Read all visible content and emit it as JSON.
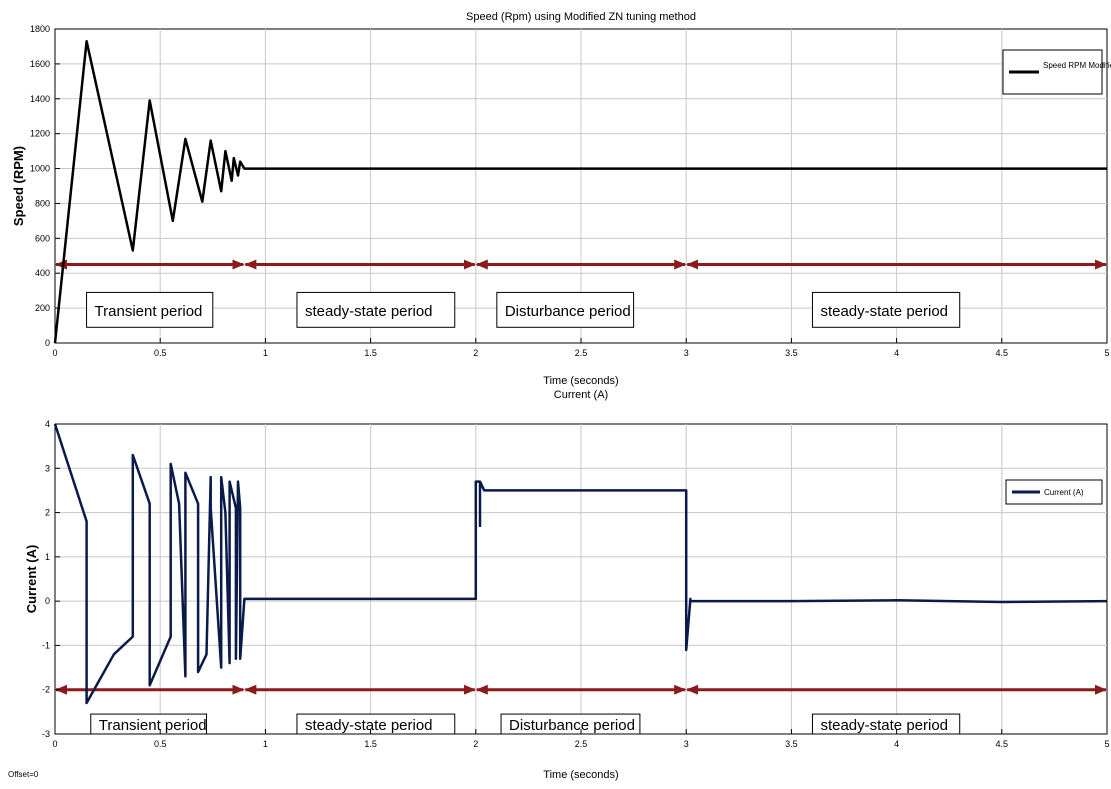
{
  "footer_note": "Offset=0",
  "chart_data": [
    {
      "type": "line",
      "title": "Speed (Rpm) using Modified ZN tuning method",
      "xlabel": "Time (seconds)",
      "ylabel": "Speed (RPM)",
      "xlim": [
        0,
        5
      ],
      "ylim": [
        0,
        1800
      ],
      "xticks": [
        0,
        0.5,
        1,
        1.5,
        2,
        2.5,
        3,
        3.5,
        4,
        4.5,
        5
      ],
      "yticks": [
        0,
        200,
        400,
        600,
        800,
        1000,
        1200,
        1400,
        1600,
        1800
      ],
      "xticklabels": [
        "0",
        "0.5",
        "1",
        "1.5",
        "2",
        "2.5",
        "3",
        "3.5",
        "4",
        "4.5",
        "5"
      ],
      "yticklabels": [
        "0",
        "200",
        "400",
        "600",
        "800",
        "1000",
        "1200",
        "1400",
        "1600",
        "1800"
      ],
      "grid": true,
      "legend_position": "top-right",
      "series": [
        {
          "name": "Speed RPM Modified ZN",
          "color": "#000000",
          "x": [
            0,
            0.15,
            0.37,
            0.45,
            0.56,
            0.62,
            0.7,
            0.74,
            0.79,
            0.81,
            0.84,
            0.85,
            0.87,
            0.88,
            0.9,
            5
          ],
          "y": [
            0,
            1730,
            530,
            1390,
            700,
            1170,
            810,
            1160,
            870,
            1100,
            930,
            1060,
            960,
            1040,
            1000,
            1000
          ]
        }
      ],
      "annotations": {
        "arrow_y": 450,
        "arrow_color": "#8b1a1a",
        "arrow_breaks": [
          0,
          0.9,
          2,
          3,
          5
        ],
        "periods": [
          {
            "label": "Transient period",
            "x0": 0.15,
            "x1": 0.75,
            "y0": 90,
            "y1": 290
          },
          {
            "label": "steady-state period",
            "x0": 1.15,
            "x1": 1.9,
            "y0": 90,
            "y1": 290
          },
          {
            "label": "Disturbance period",
            "x0": 2.1,
            "x1": 2.75,
            "y0": 90,
            "y1": 290
          },
          {
            "label": "steady-state period",
            "x0": 3.6,
            "x1": 4.3,
            "y0": 90,
            "y1": 290
          }
        ]
      }
    },
    {
      "type": "line",
      "title": "Current (A)",
      "xlabel": "Time (seconds)",
      "ylabel": "Current (A)",
      "xlim": [
        0,
        5
      ],
      "ylim": [
        -3,
        4
      ],
      "xticks": [
        0,
        0.5,
        1,
        1.5,
        2,
        2.5,
        3,
        3.5,
        4,
        4.5,
        5
      ],
      "yticks": [
        -3,
        -2,
        -1,
        0,
        1,
        2,
        3,
        4
      ],
      "xticklabels": [
        "0",
        "0.5",
        "1",
        "1.5",
        "2",
        "2.5",
        "3",
        "3.5",
        "4",
        "4.5",
        "5"
      ],
      "yticklabels": [
        "-3",
        "-2",
        "-1",
        "0",
        "1",
        "2",
        "3",
        "4"
      ],
      "grid": true,
      "legend_position": "top-right",
      "series": [
        {
          "name": "Current (A)",
          "color": "#0a1a4a",
          "x": [
            0,
            0.15,
            0.15,
            0.28,
            0.37,
            0.37,
            0.45,
            0.45,
            0.55,
            0.55,
            0.59,
            0.62,
            0.62,
            0.68,
            0.68,
            0.72,
            0.74,
            0.74,
            0.79,
            0.79,
            0.81,
            0.83,
            0.83,
            0.86,
            0.86,
            0.87,
            0.88,
            0.88,
            0.9,
            0.9,
            1.99,
            2.0,
            2.0,
            2.02,
            2.02,
            2.02,
            2.04,
            2.04,
            2.3,
            2.6,
            2.99,
            3.0,
            3.0,
            3.02,
            3.02,
            3.5,
            4.0,
            4.5,
            5
          ],
          "y": [
            4,
            1.8,
            -2.3,
            -1.2,
            -0.8,
            3.3,
            2.2,
            -1.9,
            -0.8,
            3.1,
            2.2,
            -1.7,
            2.9,
            2.2,
            -1.6,
            -1.2,
            2.8,
            2.1,
            -1.5,
            2.8,
            2.0,
            -1.4,
            2.7,
            2.1,
            -1.3,
            2.7,
            2.1,
            -1.3,
            0.05,
            0.05,
            0.05,
            0.05,
            2.7,
            2.7,
            1.7,
            2.7,
            2.5,
            2.5,
            2.5,
            2.5,
            2.5,
            2.5,
            -1.1,
            0.05,
            0.0,
            0.0,
            0.02,
            -0.02,
            0.0
          ]
        }
      ],
      "annotations": {
        "arrow_y": -2,
        "arrow_color": "#8b1a1a",
        "arrow_breaks": [
          0,
          0.9,
          2,
          3,
          5
        ],
        "periods": [
          {
            "label": "Transient period",
            "x0": 0.17,
            "x1": 0.72,
            "y0": -3,
            "y1": -2.55
          },
          {
            "label": "steady-state period",
            "x0": 1.15,
            "x1": 1.9,
            "y0": -3,
            "y1": -2.55
          },
          {
            "label": "Disturbance period",
            "x0": 2.12,
            "x1": 2.78,
            "y0": -3,
            "y1": -2.55
          },
          {
            "label": "steady-state period",
            "x0": 3.6,
            "x1": 4.3,
            "y0": -3,
            "y1": -2.55
          }
        ]
      }
    }
  ]
}
